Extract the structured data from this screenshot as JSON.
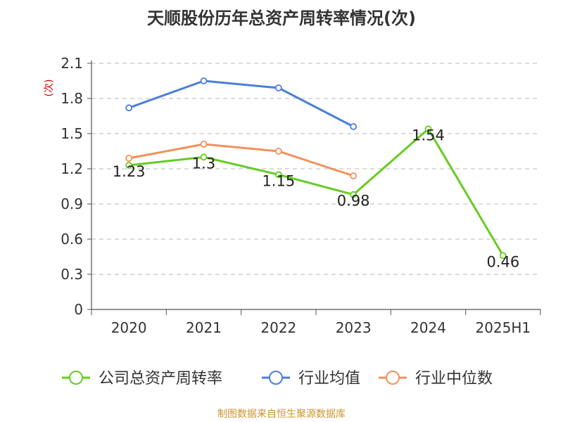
{
  "chart_data": {
    "type": "line",
    "title": "天顺股份历年总资产周转率情况(次)",
    "ylabel": "(次)",
    "xlabel": "",
    "ylim": [
      0,
      2.1
    ],
    "yticks": [
      "0",
      "0.3",
      "0.6",
      "0.9",
      "1.2",
      "1.5",
      "1.8",
      "2.1"
    ],
    "categories": [
      "2020",
      "2021",
      "2022",
      "2023",
      "2024",
      "2025H1"
    ],
    "grid": true,
    "legend_position": "bottom",
    "series": [
      {
        "name": "公司总资产周转率",
        "color": "#66cc22",
        "values": [
          1.23,
          1.3,
          1.15,
          0.98,
          1.54,
          0.46
        ],
        "labels": [
          "1.23",
          "1.3",
          "1.15",
          "0.98",
          "1.54",
          "0.46"
        ]
      },
      {
        "name": "行业均值",
        "color": "#4a7fd6",
        "values": [
          1.72,
          1.95,
          1.89,
          1.56,
          null,
          null
        ]
      },
      {
        "name": "行业中位数",
        "color": "#f2905a",
        "values": [
          1.29,
          1.41,
          1.35,
          1.14,
          null,
          null
        ]
      }
    ],
    "source": "制图数据来自恒生聚源数据库"
  }
}
